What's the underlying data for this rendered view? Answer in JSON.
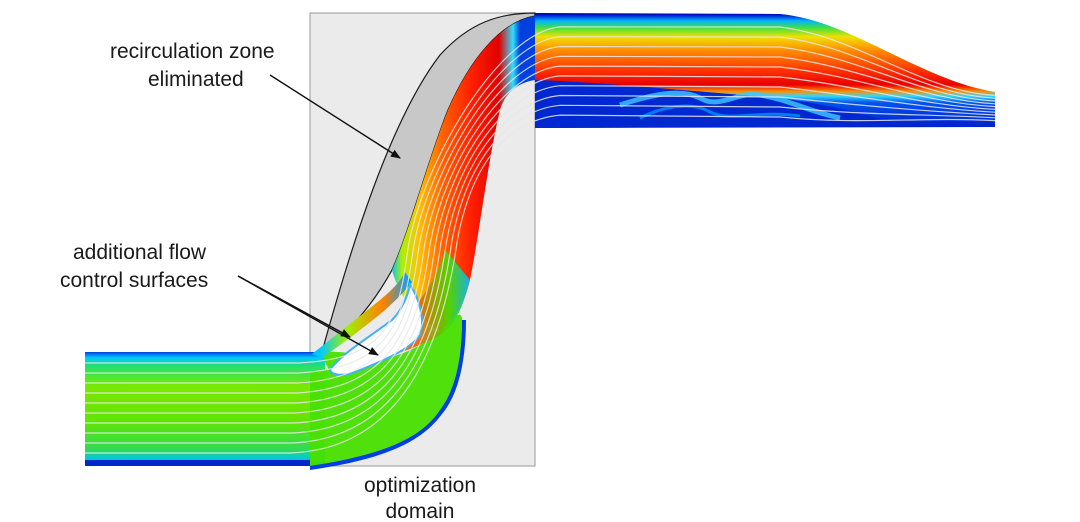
{
  "annotations": {
    "recirculation": {
      "line1": "recirculation zone",
      "line2": "eliminated"
    },
    "flow_control": {
      "line1": "additional flow",
      "line2": "control surfaces"
    },
    "domain": {
      "line1": "optimization",
      "line2": "domain"
    }
  },
  "colors": {
    "domain_fill": "#ebebeb",
    "domain_stroke": "#999999",
    "eliminated_zone": "#c8c8c8",
    "streamline": "#e8e8e8",
    "colormap": [
      "#0000c8",
      "#0060ff",
      "#00c8ff",
      "#00e68c",
      "#8cf000",
      "#ffeb00",
      "#ff8c00",
      "#ff2800",
      "#e60000"
    ]
  }
}
